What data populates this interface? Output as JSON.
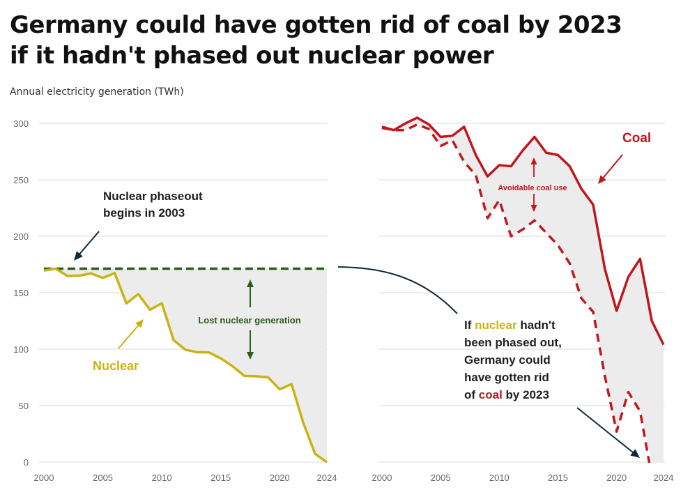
{
  "title_line1": "Germany could have gotten rid of coal by 2023",
  "title_line2": "if it hadn't phased out nuclear power",
  "subtitle": "Annual electricity generation (TWh)",
  "chart_data": [
    {
      "type": "line",
      "panel": "left",
      "ylim": [
        0,
        300
      ],
      "yticks": [
        0,
        50,
        100,
        150,
        200,
        250,
        300
      ],
      "xticks": [
        2000,
        2005,
        2010,
        2015,
        2020,
        2024
      ],
      "grid": true,
      "x": [
        2000,
        2001,
        2002,
        2003,
        2004,
        2005,
        2006,
        2007,
        2008,
        2009,
        2010,
        2011,
        2012,
        2013,
        2014,
        2015,
        2016,
        2017,
        2018,
        2019,
        2020,
        2021,
        2022,
        2023,
        2024
      ],
      "series": [
        {
          "name": "Nuclear",
          "color": "#c9b312",
          "style": "solid",
          "values": [
            169.6,
            171.3,
            164.8,
            165.1,
            167.1,
            163.1,
            167.4,
            140.5,
            148.8,
            134.9,
            140.6,
            108.0,
            99.5,
            97.3,
            97.1,
            91.8,
            84.9,
            76.3,
            76.0,
            75.1,
            64.4,
            69.1,
            34.7,
            7.2,
            0
          ]
        },
        {
          "name": "Nuclear phaseout baseline",
          "color": "#2e5a1e",
          "style": "dashed",
          "values": [
            171.3,
            171.3,
            171.3,
            171.3,
            171.3,
            171.3,
            171.3,
            171.3,
            171.3,
            171.3,
            171.3,
            171.3,
            171.3,
            171.3,
            171.3,
            171.3,
            171.3,
            171.3,
            171.3,
            171.3,
            171.3,
            171.3,
            171.3,
            171.3,
            171.3
          ]
        }
      ],
      "annotations": {
        "phaseout": [
          "Nuclear phaseout",
          "begins in 2003"
        ],
        "lost": "Lost nuclear generation",
        "series_label": "Nuclear"
      }
    },
    {
      "type": "line",
      "panel": "right",
      "ylim": [
        0,
        300
      ],
      "yticks": [
        0,
        50,
        100,
        150,
        200,
        250,
        300
      ],
      "xticks": [
        2000,
        2005,
        2010,
        2015,
        2020,
        2024
      ],
      "grid": true,
      "x": [
        2000,
        2001,
        2002,
        2003,
        2004,
        2005,
        2006,
        2007,
        2008,
        2009,
        2010,
        2011,
        2012,
        2013,
        2014,
        2015,
        2016,
        2017,
        2018,
        2019,
        2020,
        2021,
        2022,
        2023,
        2024
      ],
      "series": [
        {
          "name": "Coal",
          "color": "#c0171e",
          "style": "solid",
          "values": [
            297,
            294,
            300,
            305,
            299,
            288,
            289,
            297,
            272,
            253,
            263,
            262,
            276,
            288,
            274,
            272,
            262,
            242,
            228,
            171,
            134,
            164,
            180,
            125,
            104
          ]
        },
        {
          "name": "Coal without nuclear phaseout",
          "color": "#c0171e",
          "style": "dashed",
          "values": [
            296,
            294,
            294,
            299,
            295,
            280,
            285,
            266,
            254,
            216,
            232,
            200,
            206,
            214,
            203,
            192,
            176,
            145,
            133,
            76,
            27,
            62,
            45,
            -13,
            -15
          ]
        }
      ],
      "annotations": {
        "avoidable": "Avoidable coal use",
        "series_label": "Coal",
        "callout_parts": [
          "If ",
          "nuclear",
          " hadn't",
          "been phased out,",
          "Germany could",
          "have gotten rid",
          "of ",
          "coal",
          " by 2023"
        ]
      }
    }
  ],
  "colors": {
    "nuclear": "#c9b312",
    "baseline": "#2e5a1e",
    "coal": "#c0171e",
    "callout": "#10283a",
    "shade": "#ececec"
  }
}
